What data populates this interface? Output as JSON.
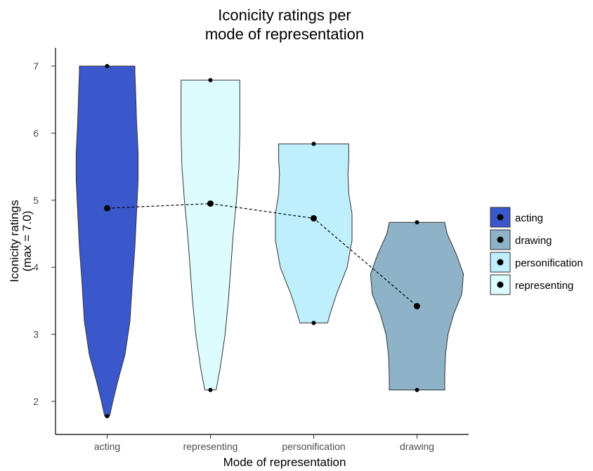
{
  "chart_data": {
    "type": "violin",
    "title": [
      "Iconicity ratings per",
      "mode of representation"
    ],
    "xlabel": "Mode of representation",
    "ylabel": [
      "Iconicity ratings",
      "(max = 7.0)"
    ],
    "ylim": [
      1.75,
      7.25
    ],
    "yticks": [
      2,
      3,
      4,
      5,
      6,
      7
    ],
    "grid": false,
    "legend_position": "right",
    "categories": [
      "acting",
      "representing",
      "personification",
      "drawing"
    ],
    "series": [
      {
        "name": "acting",
        "color": "#3a57cc",
        "min": 1.78,
        "max": 7.0,
        "mean": 4.88,
        "density": [
          [
            1.78,
            0.03
          ],
          [
            2.0,
            0.07
          ],
          [
            2.3,
            0.13
          ],
          [
            2.7,
            0.22
          ],
          [
            3.2,
            0.28
          ],
          [
            3.8,
            0.31
          ],
          [
            4.3,
            0.34
          ],
          [
            4.8,
            0.36
          ],
          [
            5.3,
            0.38
          ],
          [
            5.7,
            0.38
          ],
          [
            6.2,
            0.36
          ],
          [
            6.6,
            0.35
          ],
          [
            6.9,
            0.34
          ],
          [
            7.0,
            0.34
          ]
        ]
      },
      {
        "name": "representing",
        "color": "#dcfcfd",
        "min": 2.17,
        "max": 6.79,
        "mean": 4.95,
        "density": [
          [
            2.17,
            0.07
          ],
          [
            2.5,
            0.12
          ],
          [
            3.0,
            0.18
          ],
          [
            3.5,
            0.22
          ],
          [
            4.0,
            0.25
          ],
          [
            4.5,
            0.28
          ],
          [
            5.0,
            0.32
          ],
          [
            5.5,
            0.35
          ],
          [
            6.0,
            0.36
          ],
          [
            6.5,
            0.36
          ],
          [
            6.79,
            0.36
          ]
        ]
      },
      {
        "name": "personification",
        "color": "#bfeefc",
        "min": 3.17,
        "max": 5.84,
        "mean": 4.73,
        "density": [
          [
            3.17,
            0.17
          ],
          [
            3.3,
            0.2
          ],
          [
            3.6,
            0.28
          ],
          [
            4.0,
            0.41
          ],
          [
            4.4,
            0.47
          ],
          [
            4.8,
            0.47
          ],
          [
            5.1,
            0.43
          ],
          [
            5.4,
            0.42
          ],
          [
            5.6,
            0.43
          ],
          [
            5.84,
            0.43
          ]
        ]
      },
      {
        "name": "drawing",
        "color": "#8eb2c8",
        "min": 2.17,
        "max": 4.67,
        "mean": 3.42,
        "density": [
          [
            2.17,
            0.34
          ],
          [
            2.4,
            0.34
          ],
          [
            2.7,
            0.35
          ],
          [
            3.0,
            0.38
          ],
          [
            3.3,
            0.45
          ],
          [
            3.6,
            0.55
          ],
          [
            3.9,
            0.57
          ],
          [
            4.2,
            0.48
          ],
          [
            4.5,
            0.37
          ],
          [
            4.67,
            0.34
          ]
        ]
      }
    ],
    "legend": [
      "acting",
      "drawing",
      "personification",
      "representing"
    ]
  }
}
